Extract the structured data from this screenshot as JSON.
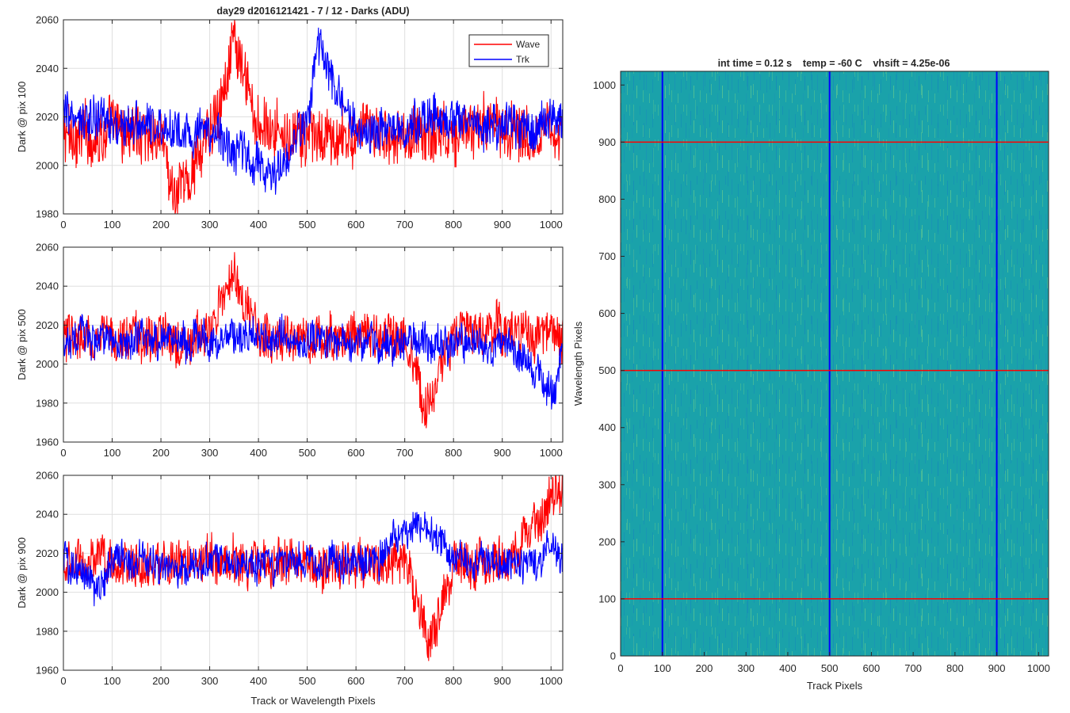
{
  "figure": {
    "left_title": "day29 d2016121421 - 7 / 12 - Darks (ADU)",
    "right_title": "int time = 0.12 s    temp = -60 C    vhsift = 4.25e-06",
    "colors": {
      "wave": "#ff0000",
      "trk": "#0000ff",
      "heatmap_base": "#1ca3a8",
      "heatmap_light": "#5fc98e",
      "heatmap_dark": "#1289b8"
    }
  },
  "chart_data": [
    {
      "type": "line",
      "title": "day29 d2016121421 - 7 / 12 - Darks (ADU)",
      "ylabel": "Dark @ pix 100",
      "xlabel": "",
      "xlim": [
        0,
        1024
      ],
      "ylim": [
        1980,
        2060
      ],
      "xticks": [
        "0",
        "100",
        "200",
        "300",
        "400",
        "500",
        "600",
        "700",
        "800",
        "900",
        "1000"
      ],
      "yticks": [
        "1980",
        "2000",
        "2020",
        "2040",
        "2060"
      ],
      "grid": true,
      "legend": {
        "position": "top-right",
        "entries": [
          "Wave",
          "Trk"
        ]
      },
      "series": [
        {
          "name": "Wave",
          "color": "#ff0000",
          "x": [
            0,
            100,
            200,
            230,
            300,
            350,
            400,
            500,
            600,
            700,
            800,
            900,
            1024
          ],
          "values": [
            2012,
            2014,
            2013,
            1983,
            2014,
            2048,
            2016,
            2010,
            2012,
            2012,
            2015,
            2016,
            2014
          ]
        },
        {
          "name": "Trk",
          "color": "#0000ff",
          "x": [
            0,
            100,
            200,
            300,
            440,
            500,
            520,
            600,
            700,
            800,
            900,
            1024
          ],
          "values": [
            2020,
            2017,
            2015,
            2014,
            1995,
            2018,
            2049,
            2014,
            2016,
            2020,
            2018,
            2018
          ]
        }
      ]
    },
    {
      "type": "line",
      "title": "",
      "ylabel": "Dark @ pix 500",
      "xlabel": "",
      "xlim": [
        0,
        1024
      ],
      "ylim": [
        1960,
        2060
      ],
      "xticks": [
        "0",
        "100",
        "200",
        "300",
        "400",
        "500",
        "600",
        "700",
        "800",
        "900",
        "1000"
      ],
      "yticks": [
        "1960",
        "1980",
        "2000",
        "2020",
        "2040",
        "2060"
      ],
      "grid": true,
      "series": [
        {
          "name": "Wave",
          "color": "#ff0000",
          "x": [
            0,
            100,
            200,
            300,
            350,
            400,
            500,
            600,
            700,
            740,
            800,
            900,
            1024
          ],
          "values": [
            2012,
            2014,
            2013,
            2014,
            2049,
            2014,
            2012,
            2016,
            2012,
            1976,
            2014,
            2018,
            2013
          ]
        },
        {
          "name": "Trk",
          "color": "#0000ff",
          "x": [
            0,
            100,
            200,
            300,
            400,
            500,
            600,
            700,
            800,
            900,
            1010,
            1024
          ],
          "values": [
            2014,
            2012,
            2013,
            2012,
            2014,
            2012,
            2012,
            2010,
            2012,
            2012,
            1987,
            2010
          ]
        }
      ]
    },
    {
      "type": "line",
      "title": "",
      "ylabel": "Dark @ pix 900",
      "xlabel": "Track or Wavelength Pixels",
      "xlim": [
        0,
        1024
      ],
      "ylim": [
        1960,
        2060
      ],
      "xticks": [
        "0",
        "100",
        "200",
        "300",
        "400",
        "500",
        "600",
        "700",
        "800",
        "900",
        "1000"
      ],
      "yticks": [
        "1960",
        "1980",
        "2000",
        "2020",
        "2040",
        "2060"
      ],
      "grid": true,
      "series": [
        {
          "name": "Wave",
          "color": "#ff0000",
          "x": [
            0,
            100,
            200,
            300,
            400,
            500,
            600,
            700,
            750,
            800,
            900,
            1020
          ],
          "values": [
            2014,
            2015,
            2013,
            2016,
            2016,
            2015,
            2014,
            2015,
            1974,
            2014,
            2015,
            2052
          ]
        },
        {
          "name": "Trk",
          "color": "#0000ff",
          "x": [
            0,
            70,
            100,
            200,
            300,
            400,
            500,
            600,
            740,
            800,
            900,
            1024
          ],
          "values": [
            2018,
            2000,
            2018,
            2014,
            2016,
            2014,
            2016,
            2012,
            2036,
            2018,
            2016,
            2018
          ]
        }
      ]
    },
    {
      "type": "heatmap",
      "title": "int time = 0.12 s    temp = -60 C    vhsift = 4.25e-06",
      "xlabel": "Track Pixels",
      "ylabel": "Wavelength Pixels",
      "xlim": [
        0,
        1024
      ],
      "ylim": [
        0,
        1024
      ],
      "xticks": [
        "0",
        "100",
        "200",
        "300",
        "400",
        "500",
        "600",
        "700",
        "800",
        "900",
        "1000"
      ],
      "yticks": [
        "0",
        "100",
        "200",
        "300",
        "400",
        "500",
        "600",
        "700",
        "800",
        "900",
        "1000"
      ],
      "overlays": {
        "vertical_lines_x": [
          100,
          500,
          900
        ],
        "vertical_color": "#0000ff",
        "horizontal_lines_y": [
          100,
          500,
          900
        ],
        "horizontal_color": "#ff0000"
      }
    }
  ]
}
